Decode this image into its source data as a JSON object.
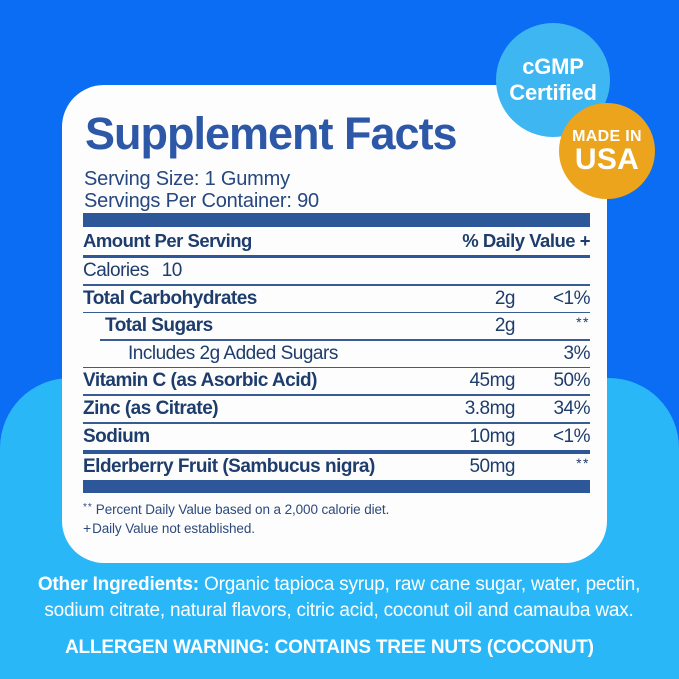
{
  "badges": {
    "cgmp": {
      "line1": "cGMP",
      "line2": "Certified"
    },
    "made_in_usa": {
      "line1": "MADE IN",
      "line2": "USA"
    }
  },
  "panel": {
    "title": "Supplement Facts",
    "serving_size": "Serving Size: 1 Gummy",
    "servings_per_container": "Servings Per Container: 90",
    "table": {
      "header": {
        "left": "Amount Per Serving",
        "right": "% Daily Value +"
      },
      "rows": [
        {
          "name": "Calories",
          "inline_value": "10",
          "amount": "",
          "dv": "",
          "bold": false,
          "indent": 0,
          "divider_after": "thin"
        },
        {
          "name": "Total Carbohydrates",
          "amount": "2g",
          "dv": "<1%",
          "bold": true,
          "indent": 0,
          "divider_after": "thin"
        },
        {
          "name": "Total Sugars",
          "amount": "2g",
          "dv": "**",
          "bold": true,
          "indent": 1,
          "divider_after": "thin-indent"
        },
        {
          "name": "Includes 2g Added Sugars",
          "amount": "",
          "dv": "3%",
          "bold": false,
          "indent": 2,
          "divider_after": "thin"
        },
        {
          "name": "Vitamin C (as Asorbic Acid)",
          "amount": "45mg",
          "dv": "50%",
          "bold": true,
          "indent": 0,
          "divider_after": "thin"
        },
        {
          "name": "Zinc (as Citrate)",
          "amount": "3.8mg",
          "dv": "34%",
          "bold": true,
          "indent": 0,
          "divider_after": "thin"
        },
        {
          "name": "Sodium",
          "amount": "10mg",
          "dv": "<1%",
          "bold": true,
          "indent": 0,
          "divider_after": "thick"
        },
        {
          "name": "Elderberry Fruit (Sambucus nigra)",
          "amount": "50mg",
          "dv": "**",
          "bold": true,
          "indent": 0,
          "divider_after": "bar2"
        }
      ],
      "footnotes": [
        {
          "marker": "**",
          "text": "Percent Daily Value based on a 2,000 calorie diet."
        },
        {
          "marker": "+",
          "text": "Daily Value not established."
        }
      ]
    }
  },
  "bottom": {
    "other_ingredients_label": "Other Ingredients:",
    "other_ingredients_line1_rest": " Organic tapioca syrup, raw cane sugar, water, pectin,",
    "other_ingredients_line2": "sodium citrate, natural flavors, citric acid, coconut oil and camauba wax.",
    "allergen_warning": "ALLERGEN WARNING: CONTAINS TREE NUTS (COCONUT)"
  },
  "colors": {
    "background_blue": "#0b6df3",
    "bottom_light_blue": "#2ab7f8",
    "cgmp_badge_blue": "#3db6f2",
    "usa_badge_orange": "#eba41c",
    "title_navy": "#2d58a8",
    "table_navy": "#1e3d6d",
    "rule_navy": "#2e5799",
    "card_white": "#fdfdfd"
  }
}
